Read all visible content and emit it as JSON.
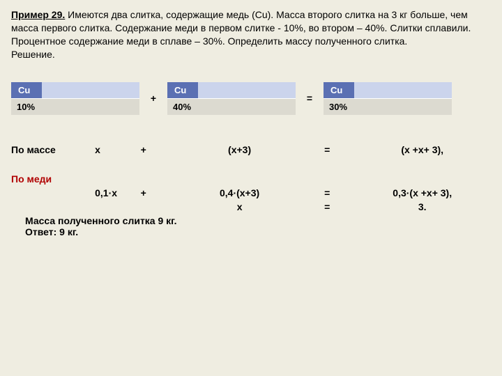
{
  "title_label": "Пример 29.",
  "problem_text": " Имеются два слитка, содержащие медь (Cu). Масса второго слитка на 3 кг больше, чем масса первого слитка.  Содержание меди в  первом слитке - 10%, во втором – 40%. Слитки сплавили. Процентное содержание меди в сплаве – 30%. Определить массу полученного слитка.",
  "solution_label": "Решение.",
  "boxes": [
    {
      "cu": "Cu",
      "pct": "10%"
    },
    {
      "cu": "Cu",
      "pct": "40%"
    },
    {
      "cu": "Cu",
      "pct": "30%"
    }
  ],
  "op_plus": "+",
  "op_eq": "=",
  "rows": {
    "mass": {
      "label": "По массе",
      "left": "x",
      "mid": "(x+3)",
      "right": "(x +x+ 3),"
    },
    "copper": {
      "label": "По  меди",
      "left": "0,1·x",
      "mid": "0,4·(x+3)",
      "right": "0,3·(x +x+ 3),"
    },
    "result": {
      "mid": "x",
      "right": "3."
    }
  },
  "answer1": "Масса полученного слитка 9 кг.",
  "answer2": "Ответ: 9 кг.",
  "colors": {
    "bg": "#efede1",
    "cu_bg": "#5b70b3",
    "cu_rest": "#cbd4ec",
    "pct_bg": "#dcdad0",
    "red": "#b00000"
  }
}
